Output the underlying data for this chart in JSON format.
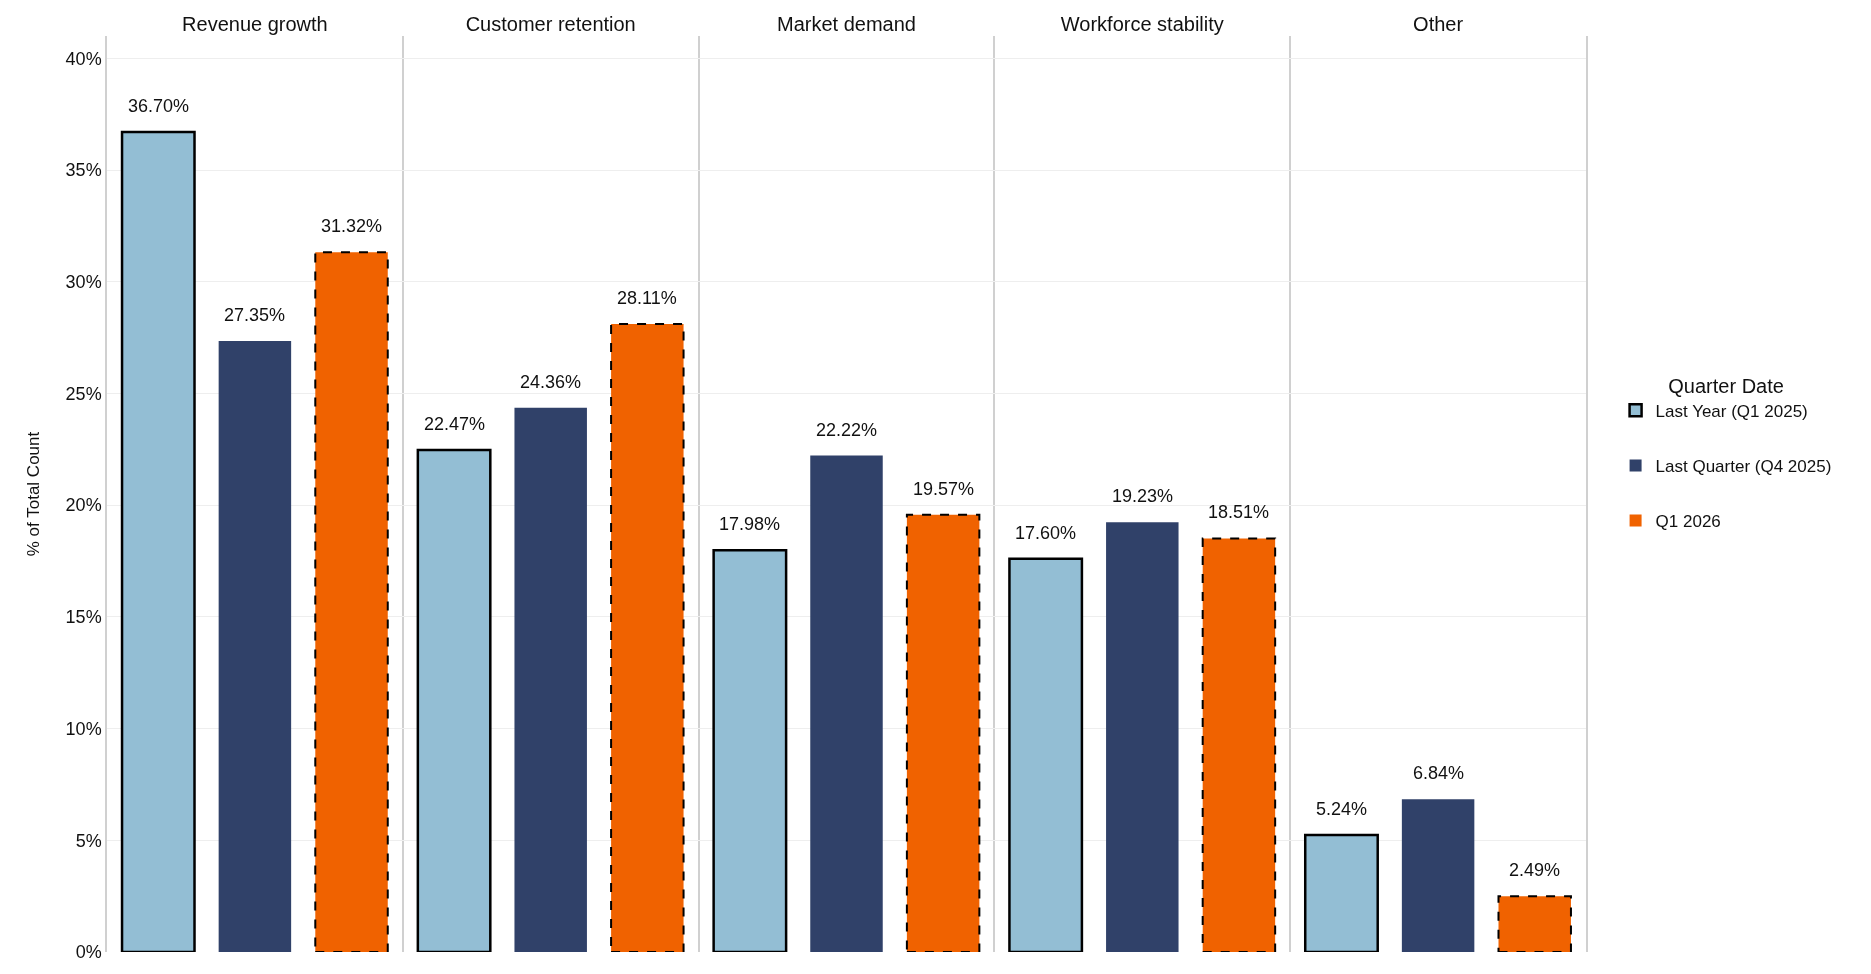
{
  "chart_data": {
    "type": "bar",
    "categories": [
      "Revenue growth",
      "Customer retention",
      "Market demand",
      "Workforce stability",
      "Other"
    ],
    "ylabel": "% of Total Count",
    "legend_title": "Quarter Date",
    "series": [
      {
        "name": "Last Year (Q1 2025)",
        "color": "#93bed4",
        "line_style": "solid",
        "values": [
          36.7,
          22.47,
          17.98,
          17.6,
          5.24
        ],
        "value_labels": [
          "36.70%",
          "22.47%",
          "17.98%",
          "17.60%",
          "5.24%"
        ]
      },
      {
        "name": "Last Quarter (Q4 2025)",
        "color": "#304169",
        "values": [
          27.35,
          24.36,
          22.22,
          19.23,
          6.84
        ],
        "value_labels": [
          "27.35%",
          "24.36%",
          "22.22%",
          "19.23%",
          "6.84%"
        ]
      },
      {
        "name": "Q1 2026",
        "color": "#f06200",
        "line_style": "dashed",
        "values": [
          31.32,
          28.11,
          19.57,
          18.51,
          2.49
        ],
        "value_labels": [
          "31.32%",
          "28.11%",
          "19.57%",
          "18.51%",
          "2.49%"
        ]
      }
    ],
    "ylim": [
      0,
      41
    ],
    "yticks": [
      {
        "value": 0,
        "label": "0%"
      },
      {
        "value": 5,
        "label": "5%"
      },
      {
        "value": 10,
        "label": "10%"
      },
      {
        "value": 15,
        "label": "15%"
      },
      {
        "value": 20,
        "label": "20%"
      },
      {
        "value": 25,
        "label": "25%"
      },
      {
        "value": 30,
        "label": "30%"
      },
      {
        "value": 35,
        "label": "35%"
      },
      {
        "value": 40,
        "label": "40%"
      }
    ],
    "grid": true,
    "legend": "right"
  }
}
